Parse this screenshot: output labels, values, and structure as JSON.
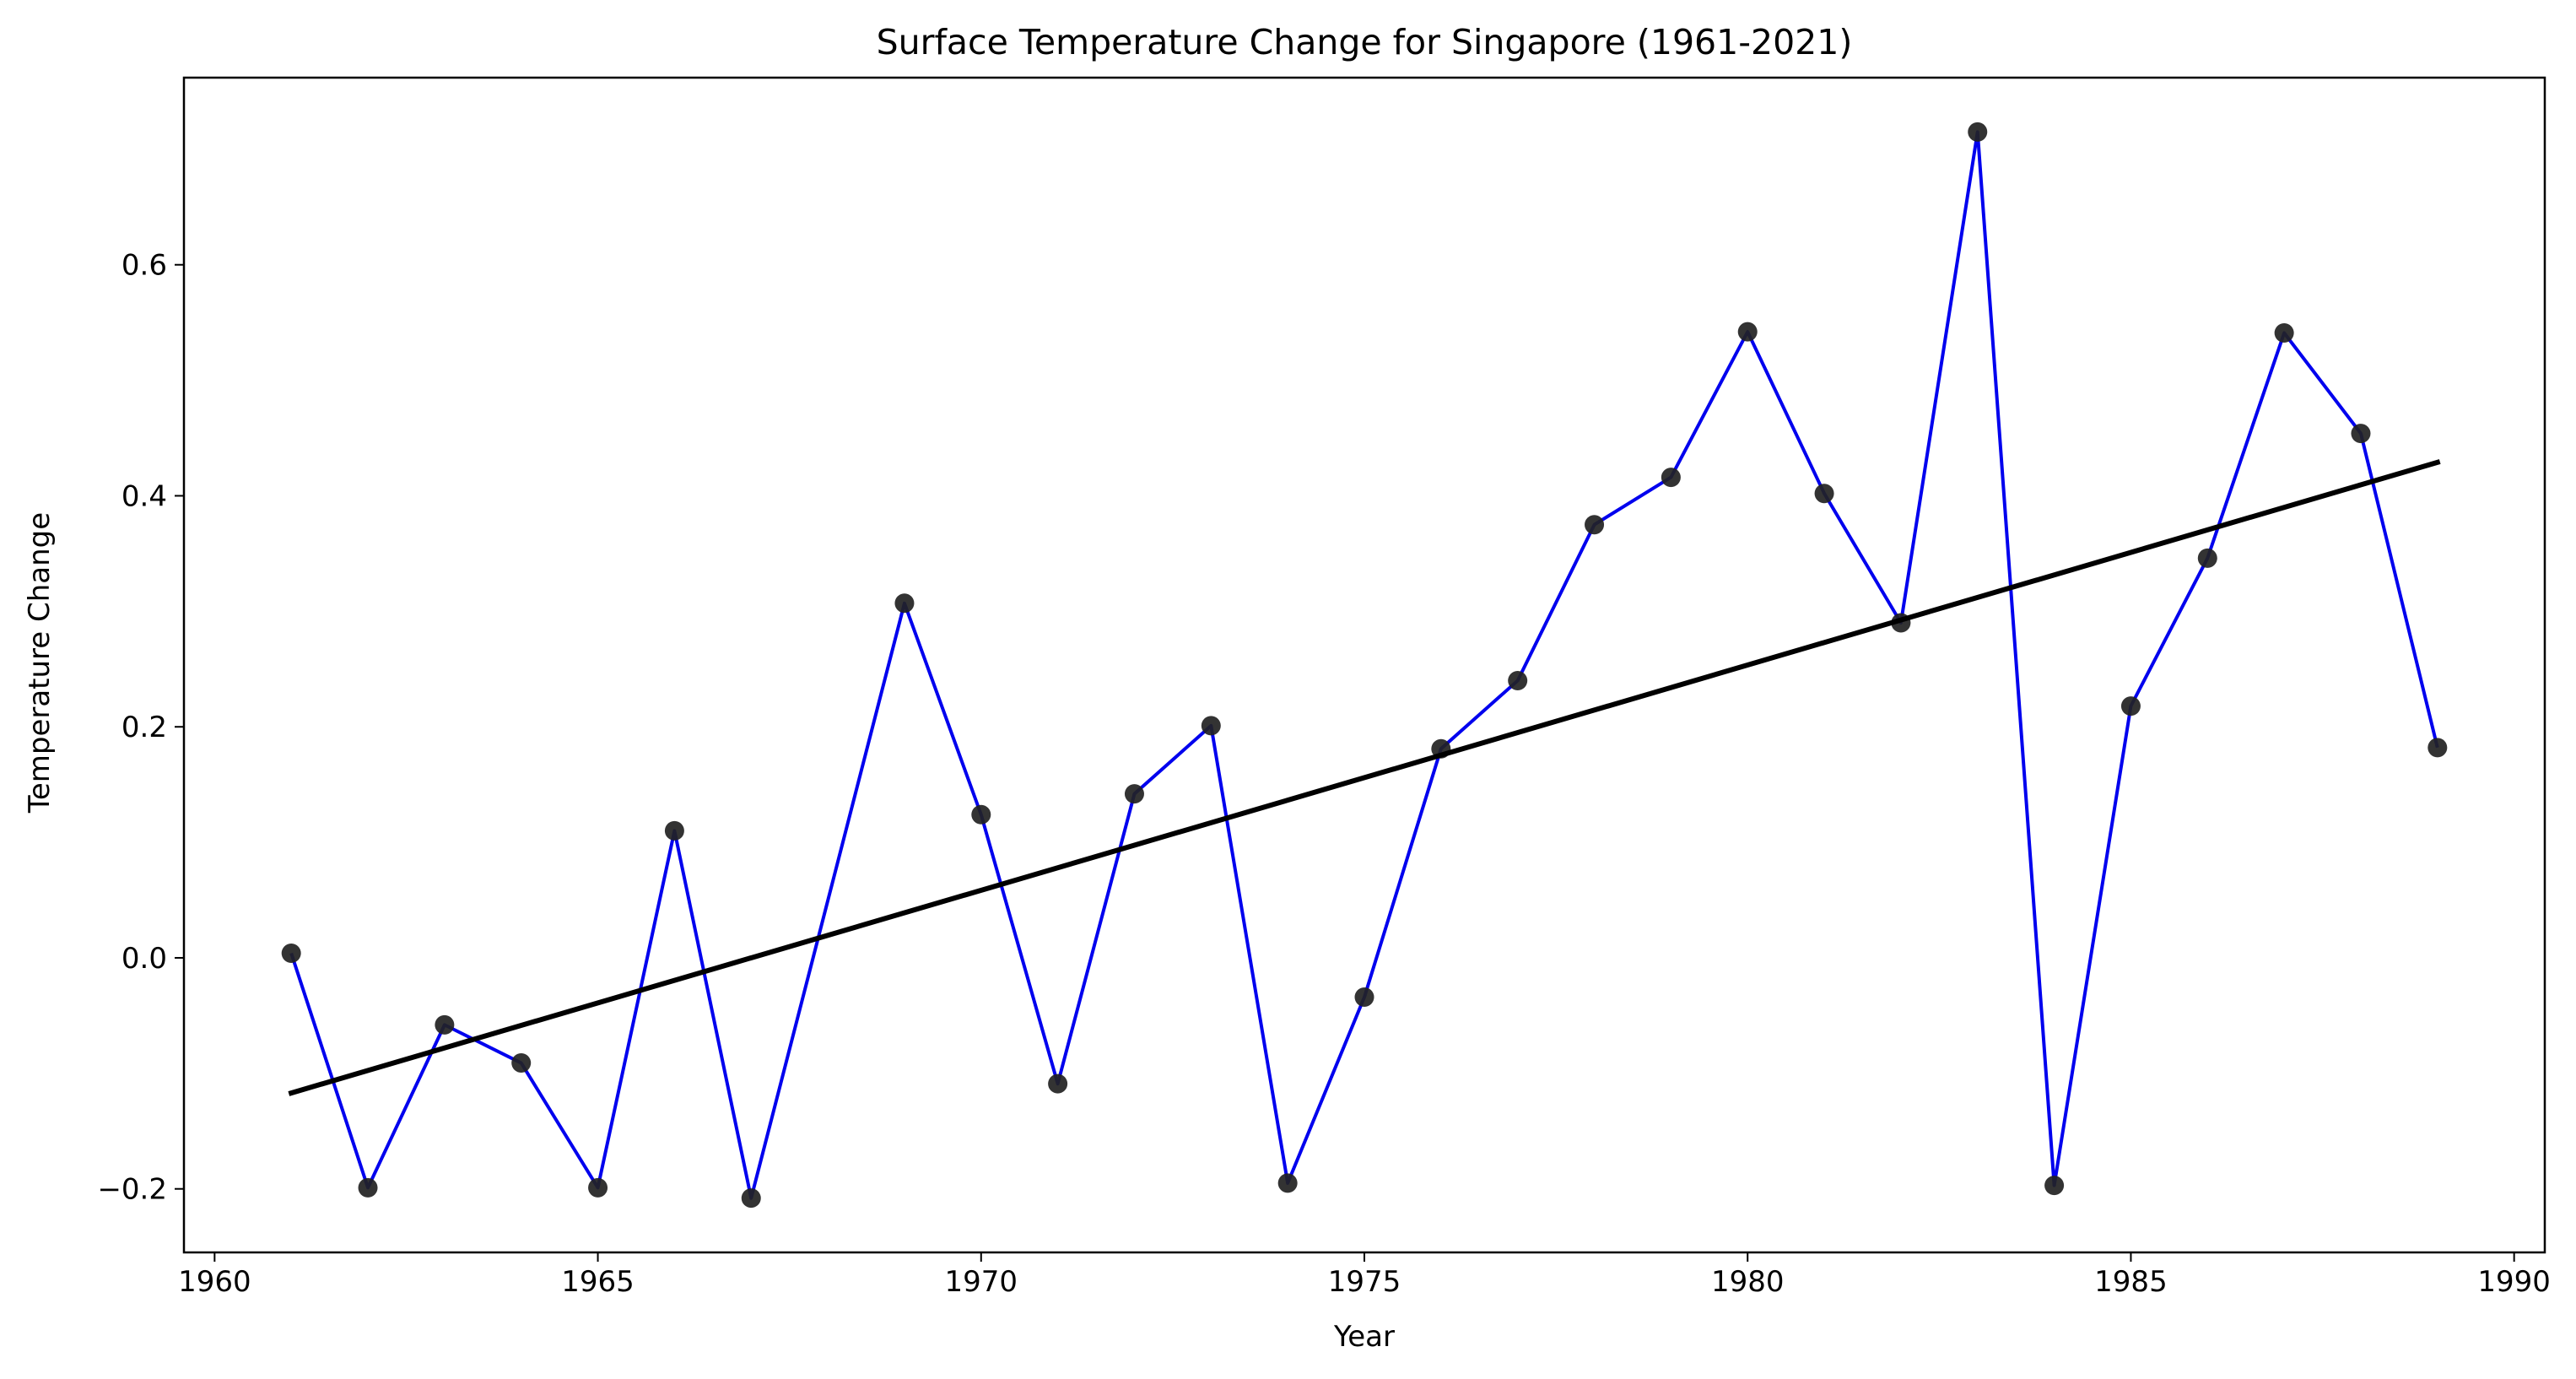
{
  "chart_data": {
    "type": "line",
    "title": "Surface Temperature Change for Singapore (1961-2021)",
    "xlabel": "Year",
    "ylabel": "Temperature Change",
    "xlim": [
      1959.6,
      1990.4
    ],
    "ylim": [
      -0.255,
      0.762
    ],
    "x_ticks": [
      1960,
      1965,
      1970,
      1975,
      1980,
      1985,
      1990
    ],
    "y_ticks": [
      -0.2,
      0.0,
      0.2,
      0.4,
      0.6
    ],
    "y_tick_labels": [
      "−0.2",
      "0.0",
      "0.2",
      "0.4",
      "0.6"
    ],
    "grid": false,
    "series": [
      {
        "line_color": "#0000ee",
        "marker_color": "#222222",
        "x": [
          1961,
          1962,
          1963,
          1964,
          1965,
          1966,
          1967,
          1969,
          1970,
          1971,
          1972,
          1973,
          1974,
          1975,
          1976,
          1977,
          1978,
          1979,
          1980,
          1981,
          1982,
          1983,
          1984,
          1985,
          1986,
          1987,
          1988,
          1989
        ],
        "y": [
          0.004,
          -0.199,
          -0.058,
          -0.091,
          -0.199,
          0.11,
          -0.208,
          0.307,
          0.124,
          -0.109,
          0.142,
          0.201,
          -0.195,
          -0.034,
          0.181,
          0.24,
          0.375,
          0.416,
          0.542,
          0.402,
          0.29,
          0.715,
          -0.197,
          0.218,
          0.346,
          0.541,
          0.454,
          0.182
        ]
      }
    ],
    "trend": {
      "color": "#000000",
      "x": [
        1961,
        1989
      ],
      "y": [
        -0.117,
        0.429
      ]
    }
  }
}
